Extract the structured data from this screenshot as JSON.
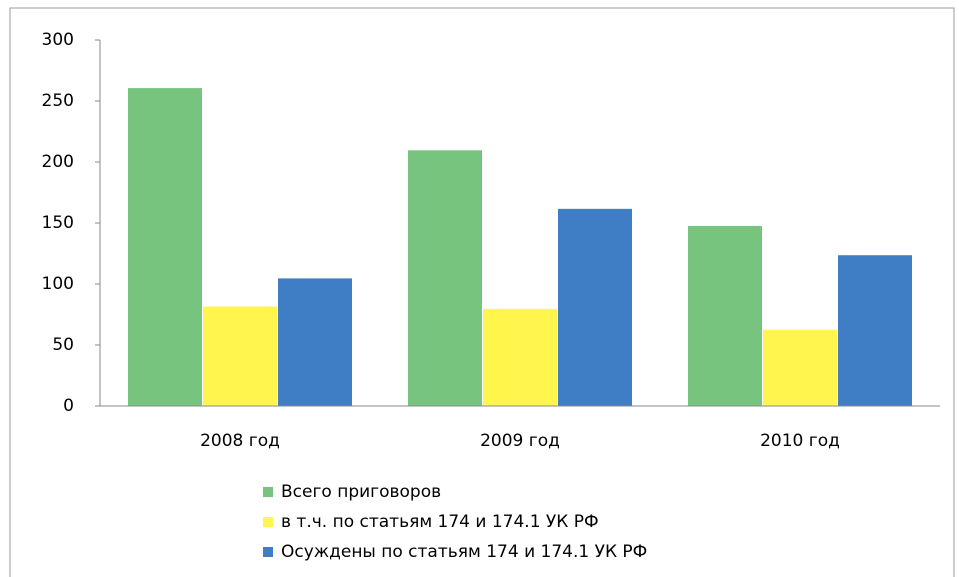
{
  "chart_data": {
    "type": "bar",
    "categories": [
      "2008 год",
      "2009 год",
      "2010 год"
    ],
    "series": [
      {
        "name": "Всего приговоров",
        "color": "#77c47f",
        "values": [
          261,
          210,
          148
        ]
      },
      {
        "name": "в т.ч. по статьям 174 и 174.1 УК РФ",
        "color": "#fff54d",
        "values": [
          82,
          80,
          63
        ]
      },
      {
        "name": "Осуждены по статьям 174 и 174.1 УК РФ",
        "color": "#3f7dc4",
        "values": [
          105,
          162,
          124
        ]
      }
    ],
    "ylim": [
      0,
      300
    ],
    "yticks": [
      0,
      50,
      100,
      150,
      200,
      250,
      300
    ],
    "grid": false,
    "legend": "bottom"
  }
}
